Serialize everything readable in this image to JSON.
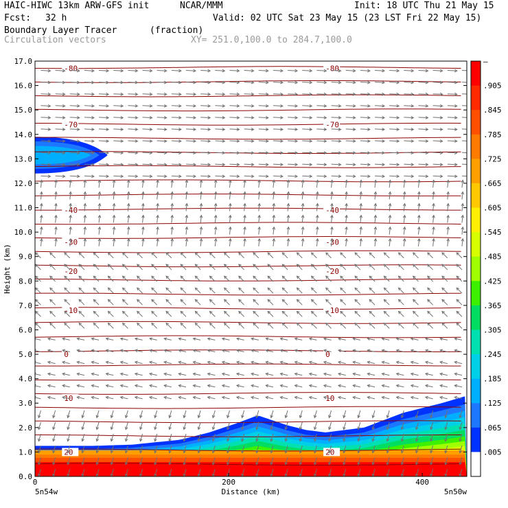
{
  "header": {
    "model": "HAIC-HIWC 13km ARW-GFS init",
    "org": "NCAR/MMM",
    "init": "Init: 18 UTC Thu 21 May 15",
    "fcst_label": "Fcst:",
    "fcst_value": "32 h",
    "valid": "Valid: 02 UTC Sat 23 May 15 (23 LST Fri 22 May 15)",
    "field": "Boundary Layer Tracer",
    "units": "(fraction)",
    "overlay": "Circulation vectors",
    "xy": "XY= 251.0,100.0 to 284.7,100.0"
  },
  "chart_data": {
    "type": "heatmap",
    "ylabel": "Height (km)",
    "xlabel": "Distance (km)",
    "x_start_label": "5n54w",
    "x_end_label": "5n50w",
    "xlim": [
      0,
      446
    ],
    "ylim": [
      0,
      17
    ],
    "xticks": [
      0,
      200,
      400
    ],
    "yticks": [
      0.0,
      1.0,
      2.0,
      3.0,
      4.0,
      5.0,
      6.0,
      7.0,
      8.0,
      9.0,
      10.0,
      11.0,
      12.0,
      13.0,
      14.0,
      15.0,
      16.0,
      17.0
    ],
    "colorbar_labels": [
      "–",
      ".905",
      ".845",
      ".785",
      ".725",
      ".665",
      ".605",
      ".545",
      ".485",
      ".425",
      ".365",
      ".305",
      ".245",
      ".185",
      ".125",
      ".065",
      ".005"
    ],
    "colorbar_colors": [
      "#ff0000",
      "#ff2a00",
      "#ff5000",
      "#ff7a00",
      "#ffa000",
      "#ffc800",
      "#ffef00",
      "#d8ff00",
      "#a0ff00",
      "#3cf000",
      "#00dd60",
      "#00e0b0",
      "#00cfe8",
      "#00b0ff",
      "#1e78ff",
      "#0032ff",
      "#ffffff"
    ],
    "temperature_contours": [
      {
        "label": "-80",
        "height": 16.7
      },
      {
        "label": "-70",
        "height": 14.4
      },
      {
        "label": "-40",
        "height": 10.9
      },
      {
        "label": "-30",
        "height": 9.6
      },
      {
        "label": "-20",
        "height": 8.4
      },
      {
        "label": "-10",
        "height": 6.8
      },
      {
        "label": "0",
        "height": 5.0
      },
      {
        "label": "10",
        "height": 3.2
      },
      {
        "label": "20",
        "height": 1.0
      }
    ],
    "tracer_boundary_top": [
      [
        0,
        1.25
      ],
      [
        60,
        1.25
      ],
      [
        100,
        1.3
      ],
      [
        150,
        1.5
      ],
      [
        180,
        1.8
      ],
      [
        210,
        2.2
      ],
      [
        230,
        2.5
      ],
      [
        260,
        2.1
      ],
      [
        280,
        1.9
      ],
      [
        300,
        1.8
      ],
      [
        320,
        1.9
      ],
      [
        340,
        2.0
      ],
      [
        360,
        2.3
      ],
      [
        380,
        2.6
      ],
      [
        400,
        2.8
      ],
      [
        420,
        3.0
      ],
      [
        446,
        3.3
      ]
    ],
    "upper_tracer_patch": {
      "x_range": [
        0,
        75
      ],
      "height_range": [
        12.4,
        13.9
      ],
      "max_fraction": 0.245
    }
  }
}
